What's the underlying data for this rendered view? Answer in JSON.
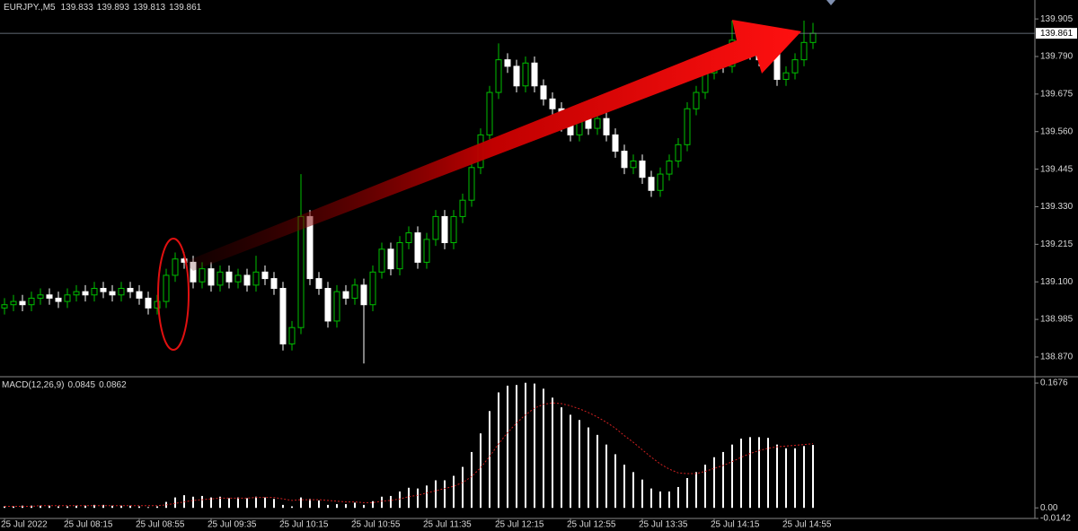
{
  "chart_data": [
    {
      "type": "candlestick",
      "title": "EURJPY.,M5",
      "categories": [
        "25 Jul 2022",
        null,
        null,
        null,
        null,
        null,
        null,
        "25 Jul 08:15",
        null,
        null,
        null,
        null,
        null,
        null,
        null,
        "25 Jul 08:55",
        null,
        null,
        null,
        null,
        null,
        null,
        null,
        "25 Jul 09:35",
        null,
        null,
        null,
        null,
        null,
        null,
        null,
        "25 Jul 10:15",
        null,
        null,
        null,
        null,
        null,
        null,
        null,
        "25 Jul 10:55",
        null,
        null,
        null,
        null,
        null,
        null,
        null,
        "25 Jul 11:35",
        null,
        null,
        null,
        null,
        null,
        null,
        null,
        "25 Jul 12:15",
        null,
        null,
        null,
        null,
        null,
        null,
        null,
        "25 Jul 12:55",
        null,
        null,
        null,
        null,
        null,
        null,
        null,
        "25 Jul 13:35",
        null,
        null,
        null,
        null,
        null,
        null,
        null,
        "25 Jul 14:15",
        null,
        null,
        null,
        null,
        null,
        null,
        null,
        "25 Jul 14:55",
        null,
        null,
        null
      ],
      "open": [
        139.02,
        139.03,
        139.04,
        139.03,
        139.05,
        139.06,
        139.05,
        139.04,
        139.06,
        139.07,
        139.06,
        139.08,
        139.07,
        139.06,
        139.08,
        139.07,
        139.05,
        139.02,
        139.04,
        139.12,
        139.17,
        139.16,
        139.1,
        139.14,
        139.09,
        139.13,
        139.1,
        139.12,
        139.09,
        139.13,
        139.11,
        139.08,
        138.91,
        138.96,
        139.3,
        139.11,
        139.08,
        138.98,
        139.07,
        139.05,
        139.09,
        139.03,
        139.13,
        139.2,
        139.14,
        139.22,
        139.25,
        139.16,
        139.23,
        139.3,
        139.22,
        139.3,
        139.35,
        139.45,
        139.55,
        139.68,
        139.78,
        139.76,
        139.7,
        139.77,
        139.7,
        139.66,
        139.63,
        139.58,
        139.55,
        139.6,
        139.57,
        139.6,
        139.55,
        139.5,
        139.45,
        139.47,
        139.42,
        139.38,
        139.43,
        139.47,
        139.52,
        139.63,
        139.68,
        139.74,
        139.78,
        139.76,
        139.84,
        139.86,
        139.8,
        139.78,
        139.8,
        139.72,
        139.74,
        139.78,
        139.833
      ],
      "high": [
        139.05,
        139.06,
        139.06,
        139.07,
        139.08,
        139.08,
        139.07,
        139.08,
        139.09,
        139.09,
        139.1,
        139.1,
        139.09,
        139.1,
        139.1,
        139.09,
        139.07,
        139.06,
        139.14,
        139.19,
        139.19,
        139.18,
        139.16,
        139.16,
        139.15,
        139.15,
        139.14,
        139.14,
        139.18,
        139.15,
        139.13,
        139.1,
        138.98,
        139.43,
        139.32,
        139.13,
        139.1,
        139.09,
        139.09,
        139.11,
        139.11,
        139.15,
        139.22,
        139.22,
        139.24,
        139.27,
        139.27,
        139.25,
        139.32,
        139.32,
        139.32,
        139.37,
        139.47,
        139.57,
        139.7,
        139.83,
        139.8,
        139.78,
        139.79,
        139.79,
        139.72,
        139.68,
        139.65,
        139.6,
        139.62,
        139.62,
        139.62,
        139.62,
        139.57,
        139.52,
        139.49,
        139.49,
        139.44,
        139.45,
        139.49,
        139.54,
        139.65,
        139.7,
        139.76,
        139.8,
        139.8,
        139.9,
        139.88,
        139.88,
        139.82,
        139.82,
        139.82,
        139.76,
        139.8,
        139.9,
        139.893
      ],
      "low": [
        139.0,
        139.01,
        139.01,
        139.01,
        139.03,
        139.03,
        139.02,
        139.02,
        139.04,
        139.04,
        139.04,
        139.05,
        139.04,
        139.04,
        139.05,
        139.03,
        139.0,
        139.0,
        139.02,
        139.1,
        139.14,
        139.08,
        139.08,
        139.07,
        139.07,
        139.08,
        139.08,
        139.07,
        139.07,
        139.09,
        139.06,
        138.89,
        138.89,
        138.94,
        139.09,
        139.06,
        138.96,
        138.96,
        139.03,
        139.03,
        138.85,
        139.01,
        139.11,
        139.12,
        139.12,
        139.2,
        139.14,
        139.14,
        139.21,
        139.2,
        139.2,
        139.28,
        139.33,
        139.43,
        139.53,
        139.66,
        139.74,
        139.68,
        139.68,
        139.68,
        139.64,
        139.61,
        139.56,
        139.53,
        139.53,
        139.55,
        139.55,
        139.53,
        139.48,
        139.43,
        139.43,
        139.4,
        139.36,
        139.36,
        139.41,
        139.45,
        139.5,
        139.61,
        139.66,
        139.72,
        139.74,
        139.74,
        139.82,
        139.78,
        139.76,
        139.76,
        139.7,
        139.7,
        139.72,
        139.76,
        139.813
      ],
      "close": [
        139.03,
        139.04,
        139.03,
        139.05,
        139.06,
        139.05,
        139.04,
        139.06,
        139.07,
        139.06,
        139.08,
        139.07,
        139.06,
        139.08,
        139.07,
        139.05,
        139.02,
        139.04,
        139.12,
        139.17,
        139.16,
        139.1,
        139.14,
        139.09,
        139.13,
        139.1,
        139.12,
        139.09,
        139.13,
        139.11,
        139.08,
        138.91,
        138.96,
        139.3,
        139.11,
        139.08,
        138.98,
        139.07,
        139.05,
        139.09,
        139.03,
        139.13,
        139.2,
        139.14,
        139.22,
        139.25,
        139.16,
        139.23,
        139.3,
        139.22,
        139.3,
        139.35,
        139.45,
        139.55,
        139.68,
        139.78,
        139.76,
        139.7,
        139.77,
        139.7,
        139.66,
        139.63,
        139.58,
        139.55,
        139.6,
        139.57,
        139.6,
        139.55,
        139.5,
        139.45,
        139.47,
        139.42,
        139.38,
        139.43,
        139.47,
        139.52,
        139.63,
        139.68,
        139.74,
        139.78,
        139.76,
        139.84,
        139.86,
        139.8,
        139.78,
        139.8,
        139.72,
        139.74,
        139.78,
        139.833,
        139.861
      ],
      "up_color": "#00c000",
      "down_color": "#ffffff",
      "ylim": [
        138.815,
        139.963
      ],
      "yticks": [
        {
          "value": 138.87,
          "label": "138.870"
        },
        138.985,
        {
          "value": 139.1,
          "label": "139.100"
        },
        139.215,
        {
          "value": 139.33,
          "label": "139.330"
        },
        139.445,
        {
          "value": 139.56,
          "label": "139.560"
        },
        139.675,
        {
          "value": 139.79,
          "label": "139.790"
        },
        139.905
      ],
      "grid": false
    },
    {
      "type": "macd",
      "title": "MACD(12,26,9)",
      "values": [
        0.002,
        0.002,
        0.003,
        0.003,
        0.003,
        0.003,
        0.002,
        0.002,
        0.003,
        0.003,
        0.004,
        0.004,
        0.003,
        0.003,
        0.003,
        0.002,
        0.001,
        0.002,
        0.008,
        0.014,
        0.017,
        0.015,
        0.016,
        0.014,
        0.015,
        0.013,
        0.014,
        0.013,
        0.015,
        0.014,
        0.012,
        0.004,
        0.002,
        0.014,
        0.012,
        0.01,
        0.004,
        0.005,
        0.005,
        0.007,
        0.004,
        0.009,
        0.015,
        0.016,
        0.022,
        0.027,
        0.026,
        0.03,
        0.037,
        0.037,
        0.043,
        0.055,
        0.075,
        0.1,
        0.13,
        0.155,
        0.164,
        0.165,
        0.168,
        0.167,
        0.16,
        0.148,
        0.135,
        0.125,
        0.118,
        0.108,
        0.098,
        0.085,
        0.072,
        0.058,
        0.048,
        0.038,
        0.026,
        0.022,
        0.022,
        0.028,
        0.04,
        0.048,
        0.058,
        0.068,
        0.075,
        0.085,
        0.093,
        0.095,
        0.095,
        0.094,
        0.085,
        0.08,
        0.08,
        0.083,
        0.0845
      ],
      "signal": [
        0.002,
        0.002,
        0.002,
        0.002,
        0.003,
        0.003,
        0.003,
        0.003,
        0.003,
        0.003,
        0.003,
        0.003,
        0.003,
        0.003,
        0.003,
        0.003,
        0.003,
        0.003,
        0.004,
        0.006,
        0.008,
        0.01,
        0.011,
        0.012,
        0.013,
        0.013,
        0.013,
        0.013,
        0.014,
        0.014,
        0.014,
        0.012,
        0.01,
        0.011,
        0.011,
        0.011,
        0.01,
        0.009,
        0.008,
        0.008,
        0.007,
        0.007,
        0.009,
        0.01,
        0.012,
        0.015,
        0.017,
        0.02,
        0.023,
        0.026,
        0.029,
        0.034,
        0.042,
        0.054,
        0.069,
        0.086,
        0.101,
        0.114,
        0.125,
        0.134,
        0.139,
        0.141,
        0.14,
        0.137,
        0.133,
        0.128,
        0.122,
        0.115,
        0.107,
        0.097,
        0.088,
        0.078,
        0.068,
        0.059,
        0.052,
        0.047,
        0.046,
        0.046,
        0.049,
        0.053,
        0.057,
        0.062,
        0.068,
        0.073,
        0.077,
        0.08,
        0.082,
        0.083,
        0.084,
        0.085,
        0.0862
      ],
      "color": "#ffffff",
      "signal_color": "#d02020",
      "ylim": [
        -0.0142,
        0.1737
      ],
      "yticks": [
        0.1676,
        {
          "value": 0,
          "label": "0.00"
        },
        -0.0142
      ]
    }
  ]
}
